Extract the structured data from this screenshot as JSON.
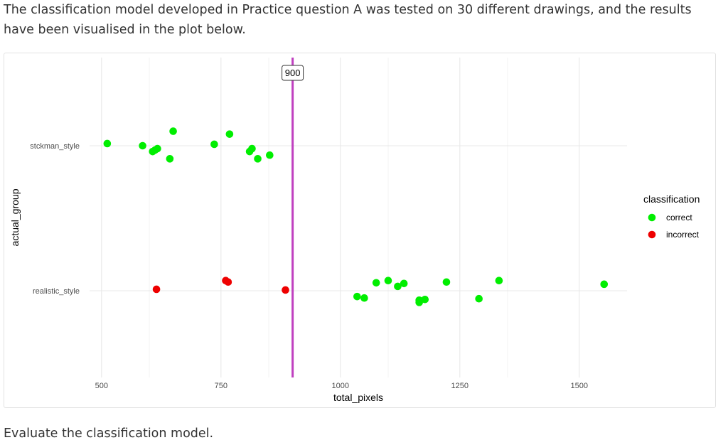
{
  "intro_text": "The classification model developed in Practice question A was tested on 30 different drawings, and the results have been visualised in the plot below.",
  "outro_text": "Evaluate the classification model.",
  "chart_data": {
    "type": "scatter",
    "xlabel": "total_pixels",
    "ylabel": "actual_group",
    "xlim": [
      475,
      1600
    ],
    "x_ticks": [
      500,
      750,
      1000,
      1250,
      1500
    ],
    "y_categories": [
      "realistic_style",
      "stckman_style"
    ],
    "grid": true,
    "threshold": {
      "value": 900,
      "label": "900",
      "color": "#c040c0"
    },
    "legend": {
      "title": "classification",
      "placement": "right",
      "entries": [
        {
          "name": "correct",
          "color": "#00ee00"
        },
        {
          "name": "incorrect",
          "color": "#ee0000"
        }
      ]
    },
    "points": [
      {
        "x": 512,
        "group": "stckman_style",
        "jitter": 0.03,
        "classification": "correct"
      },
      {
        "x": 586,
        "group": "stckman_style",
        "jitter": 0.0,
        "classification": "correct"
      },
      {
        "x": 607,
        "group": "stckman_style",
        "jitter": -0.08,
        "classification": "correct"
      },
      {
        "x": 612,
        "group": "stckman_style",
        "jitter": -0.06,
        "classification": "correct"
      },
      {
        "x": 617,
        "group": "stckman_style",
        "jitter": -0.04,
        "classification": "correct"
      },
      {
        "x": 643,
        "group": "stckman_style",
        "jitter": -0.18,
        "classification": "correct"
      },
      {
        "x": 650,
        "group": "stckman_style",
        "jitter": 0.2,
        "classification": "correct"
      },
      {
        "x": 736,
        "group": "stckman_style",
        "jitter": 0.02,
        "classification": "correct"
      },
      {
        "x": 768,
        "group": "stckman_style",
        "jitter": 0.16,
        "classification": "correct"
      },
      {
        "x": 810,
        "group": "stckman_style",
        "jitter": -0.08,
        "classification": "correct"
      },
      {
        "x": 815,
        "group": "stckman_style",
        "jitter": -0.04,
        "classification": "correct"
      },
      {
        "x": 827,
        "group": "stckman_style",
        "jitter": -0.18,
        "classification": "correct"
      },
      {
        "x": 852,
        "group": "stckman_style",
        "jitter": -0.13,
        "classification": "correct"
      },
      {
        "x": 615,
        "group": "realistic_style",
        "jitter": 0.02,
        "classification": "incorrect"
      },
      {
        "x": 760,
        "group": "realistic_style",
        "jitter": 0.14,
        "classification": "incorrect"
      },
      {
        "x": 765,
        "group": "realistic_style",
        "jitter": 0.12,
        "classification": "incorrect"
      },
      {
        "x": 885,
        "group": "realistic_style",
        "jitter": 0.01,
        "classification": "incorrect"
      },
      {
        "x": 1035,
        "group": "realistic_style",
        "jitter": -0.08,
        "classification": "correct"
      },
      {
        "x": 1050,
        "group": "realistic_style",
        "jitter": -0.1,
        "classification": "correct"
      },
      {
        "x": 1075,
        "group": "realistic_style",
        "jitter": 0.11,
        "classification": "correct"
      },
      {
        "x": 1100,
        "group": "realistic_style",
        "jitter": 0.14,
        "classification": "correct"
      },
      {
        "x": 1120,
        "group": "realistic_style",
        "jitter": 0.06,
        "classification": "correct"
      },
      {
        "x": 1133,
        "group": "realistic_style",
        "jitter": 0.1,
        "classification": "correct"
      },
      {
        "x": 1165,
        "group": "realistic_style",
        "jitter": -0.13,
        "classification": "correct"
      },
      {
        "x": 1165,
        "group": "realistic_style",
        "jitter": -0.16,
        "classification": "correct"
      },
      {
        "x": 1177,
        "group": "realistic_style",
        "jitter": -0.12,
        "classification": "correct"
      },
      {
        "x": 1222,
        "group": "realistic_style",
        "jitter": 0.12,
        "classification": "correct"
      },
      {
        "x": 1290,
        "group": "realistic_style",
        "jitter": -0.11,
        "classification": "correct"
      },
      {
        "x": 1332,
        "group": "realistic_style",
        "jitter": 0.14,
        "classification": "correct"
      },
      {
        "x": 1552,
        "group": "realistic_style",
        "jitter": 0.09,
        "classification": "correct"
      }
    ]
  }
}
